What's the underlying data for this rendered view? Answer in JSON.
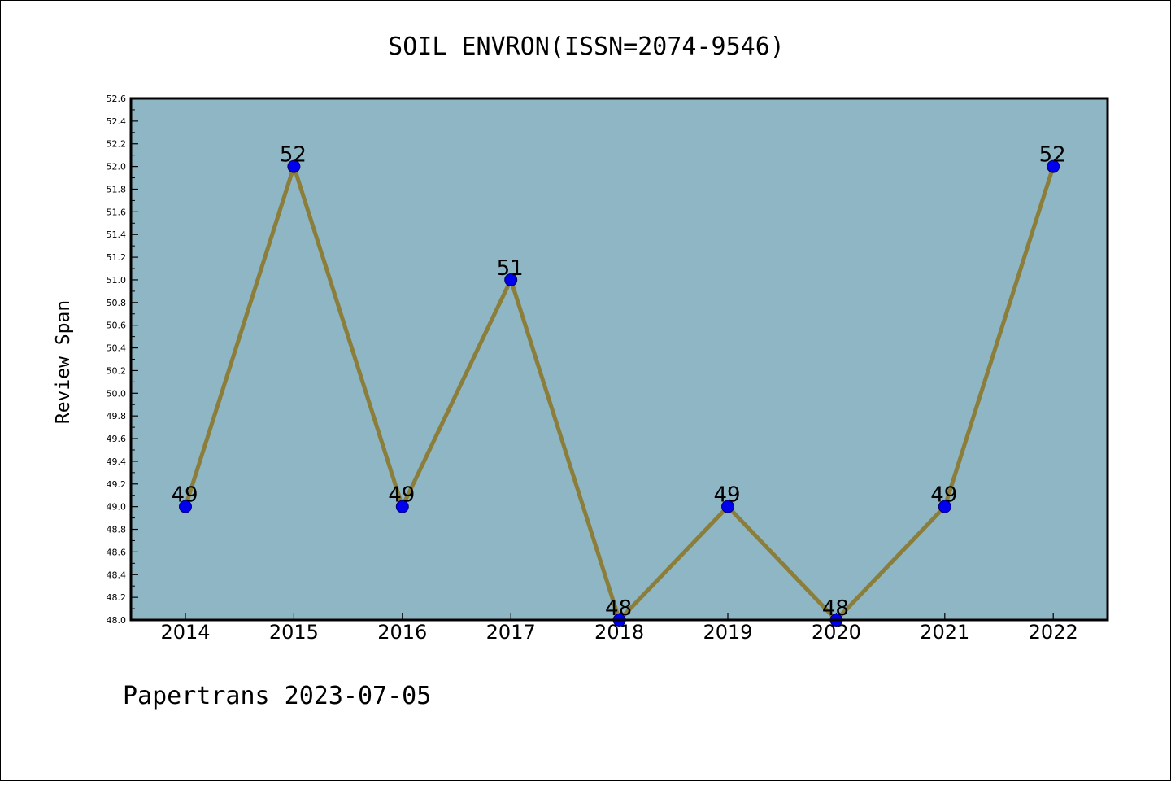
{
  "chart_data": {
    "type": "line",
    "title": "SOIL ENVRON(ISSN=2074-9546)",
    "xlabel": "",
    "ylabel": "Review Span",
    "categories": [
      "2014",
      "2015",
      "2016",
      "2017",
      "2018",
      "2019",
      "2020",
      "2021",
      "2022"
    ],
    "series": [
      {
        "values": [
          49,
          52,
          49,
          51,
          48,
          49,
          48,
          49,
          52
        ]
      }
    ],
    "data_labels": [
      "49",
      "52",
      "49",
      "51",
      "48",
      "49",
      "48",
      "49",
      "52"
    ],
    "ylim": [
      48.0,
      52.6
    ],
    "yticks": [
      "48.0",
      "48.2",
      "48.4",
      "48.6",
      "48.8",
      "49.0",
      "49.2",
      "49.4",
      "49.6",
      "49.8",
      "50.0",
      "50.2",
      "50.4",
      "50.6",
      "50.8",
      "51.0",
      "51.2",
      "51.4",
      "51.6",
      "51.8",
      "52.0",
      "52.2",
      "52.4",
      "52.6"
    ],
    "grid": false,
    "legend": "none",
    "colors": {
      "plot_background": "#8fb6c4",
      "line": "#8b7d3a",
      "marker": "#0000ee",
      "marker_edge": "#000066"
    }
  },
  "footer": "Papertrans 2023-07-05"
}
